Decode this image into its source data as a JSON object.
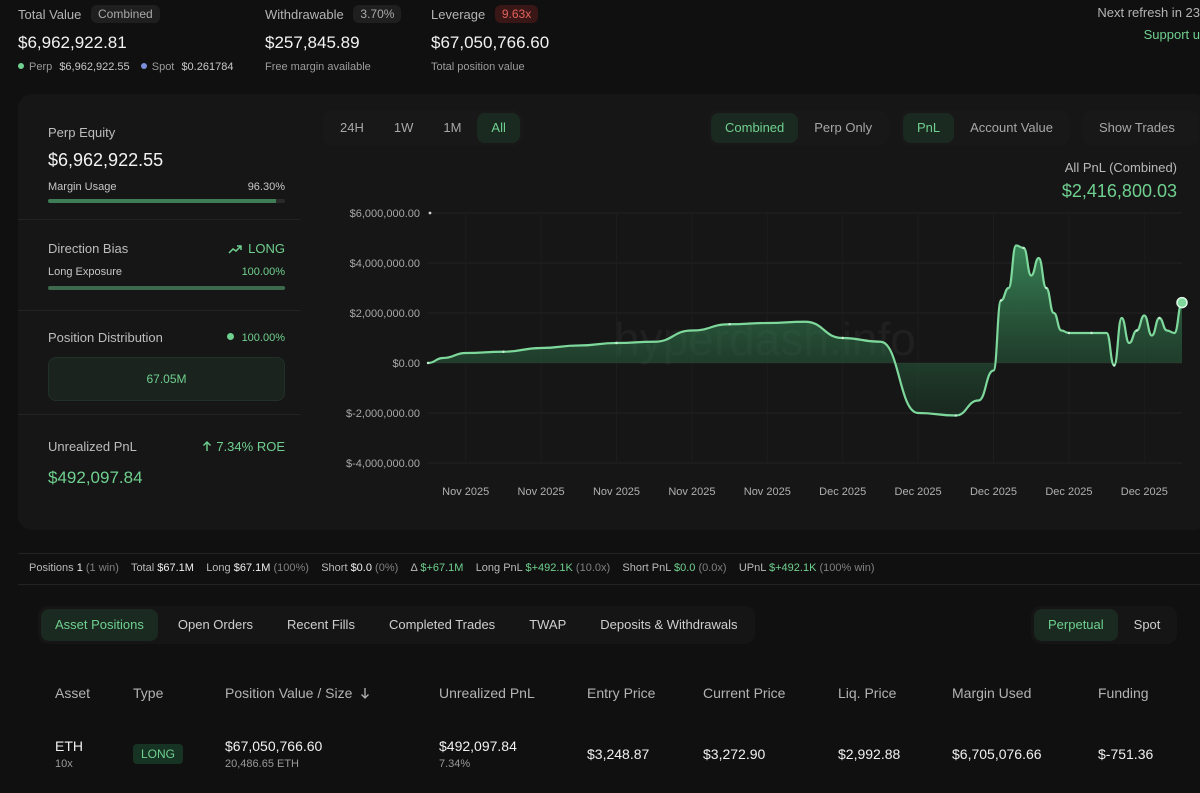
{
  "summary": {
    "total_value": {
      "label": "Total Value",
      "badge": "Combined",
      "value": "$6,962,922.81",
      "perp_label": "Perp",
      "perp_value": "$6,962,922.55",
      "spot_label": "Spot",
      "spot_value": "$0.261784"
    },
    "withdrawable": {
      "label": "Withdrawable",
      "badge": "3.70%",
      "value": "$257,845.89",
      "sub": "Free margin available"
    },
    "leverage": {
      "label": "Leverage",
      "badge": "9.63x",
      "value": "$67,050,766.60",
      "sub": "Total position value"
    },
    "refresh_text": "Next refresh in 23",
    "support_text": "Support u"
  },
  "left_panel": {
    "perp_equity_label": "Perp Equity",
    "perp_equity_value": "$6,962,922.55",
    "margin_usage_label": "Margin Usage",
    "margin_usage_value": "96.30%",
    "margin_usage_fraction": 0.963,
    "direction_bias_label": "Direction Bias",
    "direction_bias_value": "LONG",
    "long_exposure_label": "Long Exposure",
    "long_exposure_value": "100.00%",
    "long_exposure_fraction": 1.0,
    "position_distribution_label": "Position Distribution",
    "position_distribution_value": "100.00%",
    "distribution_box_value": "67.05M",
    "unrealized_pnl_label": "Unrealized PnL",
    "roe_text": "7.34% ROE",
    "unrealized_pnl_value": "$492,097.84"
  },
  "chart_controls": {
    "ranges": [
      "24H",
      "1W",
      "1M",
      "All"
    ],
    "active_range": "All",
    "modes": [
      "Combined",
      "Perp Only"
    ],
    "active_mode": "Combined",
    "metrics": [
      "PnL",
      "Account Value"
    ],
    "active_metric": "PnL",
    "show_trades_label": "Show Trades"
  },
  "chart_header": {
    "title": "All PnL (Combined)",
    "value": "$2,416,800.03"
  },
  "watermark": "hyperdash.info",
  "chart_data": {
    "type": "area",
    "title": "All PnL (Combined)",
    "xlabel": "",
    "ylabel": "",
    "ylim": [
      -4000000,
      6000000
    ],
    "y_ticks": [
      6000000,
      4000000,
      2000000,
      0,
      -2000000,
      -4000000
    ],
    "y_tick_labels": [
      "$6,000,000.00",
      "$4,000,000.00",
      "$2,000,000.00",
      "$0.00",
      "$-2,000,000.00",
      "$-4,000,000.00"
    ],
    "x_tick_labels": [
      "Nov 2025",
      "Nov 2025",
      "Nov 2025",
      "Nov 2025",
      "Nov 2025",
      "Dec 2025",
      "Dec 2025",
      "Dec 2025",
      "Dec 2025",
      "Dec 2025"
    ],
    "x_range": [
      0,
      100
    ],
    "series": [
      {
        "name": "PnL",
        "x": [
          0,
          2,
          5,
          10,
          15,
          20,
          25,
          30,
          35,
          40,
          45,
          50,
          55,
          60,
          65,
          70,
          73,
          75,
          76,
          77,
          78,
          79,
          80,
          81,
          82,
          83,
          84,
          85,
          86,
          87,
          88,
          89,
          90,
          91,
          92,
          93,
          94,
          95,
          96,
          97,
          98,
          99,
          100
        ],
        "values": [
          0,
          200000,
          400000,
          450000,
          600000,
          700000,
          800000,
          850000,
          1300000,
          1550000,
          1600000,
          1650000,
          1000000,
          850000,
          -2000000,
          -2100000,
          -1500000,
          -300000,
          2500000,
          3000000,
          4700000,
          4600000,
          3500000,
          4200000,
          3000000,
          2000000,
          1300000,
          1200000,
          1200000,
          1200000,
          1200000,
          1200000,
          1200000,
          -100000,
          1800000,
          800000,
          1300000,
          1900000,
          1100000,
          1800000,
          1300000,
          1200000,
          2416800
        ]
      }
    ]
  },
  "positions_summary": {
    "positions_label": "Positions",
    "positions_value": "1",
    "positions_note": "(1 win)",
    "total_label": "Total",
    "total_value": "$67.1M",
    "long_label": "Long",
    "long_value": "$67.1M",
    "long_pct": "(100%)",
    "short_label": "Short",
    "short_value": "$0.0",
    "short_pct": "(0%)",
    "delta_label": "Δ",
    "delta_value": "$+67.1M",
    "long_pnl_label": "Long PnL",
    "long_pnl_value": "$+492.1K",
    "long_pnl_note": "(10.0x)",
    "short_pnl_label": "Short PnL",
    "short_pnl_value": "$0.0",
    "short_pnl_note": "(0.0x)",
    "upnl_label": "UPnL",
    "upnl_value": "$+492.1K",
    "upnl_note": "(100% win)"
  },
  "tabs": {
    "items": [
      "Asset Positions",
      "Open Orders",
      "Recent Fills",
      "Completed Trades",
      "TWAP",
      "Deposits & Withdrawals"
    ],
    "active": "Asset Positions",
    "market_items": [
      "Perpetual",
      "Spot"
    ],
    "active_market": "Perpetual"
  },
  "table": {
    "headers": [
      "Asset",
      "Type",
      "Position Value / Size",
      "Unrealized PnL",
      "Entry Price",
      "Current Price",
      "Liq. Price",
      "Margin Used",
      "Funding"
    ],
    "sort_icon": "arrow-down-icon",
    "rows": [
      {
        "asset": "ETH",
        "leverage": "10x",
        "type": "LONG",
        "position_value": "$67,050,766.60",
        "size": "20,486.65 ETH",
        "unrealized_pnl": "$492,097.84",
        "pnl_pct": "7.34%",
        "entry_price": "$3,248.87",
        "current_price": "$3,272.90",
        "liq_price": "$2,992.88",
        "margin_used": "$6,705,076.66",
        "funding": "$-751.36"
      }
    ]
  },
  "colors": {
    "accent_green": "#6fd08f",
    "negative_red": "#e2635d",
    "background": "#101010",
    "card": "#161616"
  }
}
